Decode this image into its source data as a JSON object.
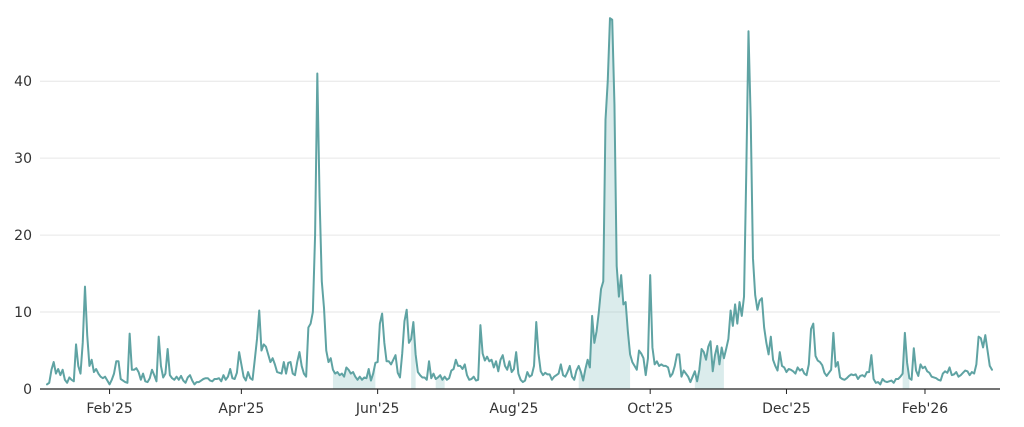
{
  "chart_data": {
    "type": "line",
    "title": "",
    "xlabel": "",
    "ylabel": "",
    "ylim": [
      0,
      49
    ],
    "y_ticks": [
      0,
      10,
      20,
      30,
      40
    ],
    "x_tick_labels": [
      {
        "date": "2025-02-01",
        "label": "Feb'25"
      },
      {
        "date": "2025-04-01",
        "label": "Apr'25"
      },
      {
        "date": "2025-06-01",
        "label": "Jun'25"
      },
      {
        "date": "2025-08-01",
        "label": "Aug'25"
      },
      {
        "date": "2025-10-01",
        "label": "Oct'25"
      },
      {
        "date": "2025-12-01",
        "label": "Dec'25"
      },
      {
        "date": "2026-02-01",
        "label": "Feb'26"
      }
    ],
    "grid": "horizontal",
    "colors": {
      "line": "#5fa3a3",
      "shade": "#7fbcbc"
    },
    "start_date": "2025-01-04",
    "series": [
      {
        "values": [
          0.6,
          0.8,
          2.5,
          3.5,
          2,
          2.6,
          1.8,
          2.5,
          1.2,
          0.8,
          1.5,
          1.2,
          1,
          5.8,
          3,
          2,
          6,
          13.3,
          7,
          3,
          3.8,
          2.2,
          2.6,
          2,
          1.6,
          1.4,
          1.6,
          1.1,
          0.6,
          1.2,
          2,
          3.6,
          3.6,
          1.3,
          1.1,
          0.9,
          0.8,
          7.2,
          2.5,
          2.5,
          2.7,
          2.2,
          1.2,
          2,
          1,
          0.9,
          1.4,
          2.5,
          1.8,
          1,
          6.8,
          3,
          1.5,
          2,
          5.2,
          1.8,
          1.4,
          1.2,
          1.6,
          1.2,
          1.7,
          1.1,
          0.8,
          1.5,
          1.8,
          1.1,
          0.6,
          0.9,
          0.9,
          1.1,
          1.3,
          1.4,
          1.4,
          1.1,
          1,
          1.3,
          1.3,
          1.4,
          1,
          1.8,
          1.2,
          1.6,
          2.6,
          1.4,
          1.3,
          2.1,
          4.8,
          3.2,
          1.6,
          1.1,
          2.2,
          1.4,
          1.2,
          3.8,
          6.5,
          10.2,
          5,
          5.8,
          5.5,
          4.5,
          3.5,
          4,
          3.2,
          2.2,
          2.1,
          2,
          3.5,
          2,
          3.4,
          3.5,
          2,
          1.8,
          3.5,
          4.8,
          3,
          2,
          1.6,
          8,
          8.5,
          10,
          20,
          41,
          25,
          14,
          10.5,
          5,
          3.5,
          4,
          2.5,
          2,
          2.2,
          1.8,
          2,
          1.6,
          2.8,
          2.5,
          2,
          2.2,
          1.6,
          1.2,
          1.6,
          1.2,
          1.5,
          1.4,
          2.6,
          1.1,
          2,
          3.4,
          3.5,
          8.5,
          9.8,
          6,
          3.6,
          3.6,
          3.2,
          3.8,
          4.4,
          2.1,
          1.5,
          4.6,
          8.8,
          10.3,
          6,
          6.5,
          8.7,
          4.5,
          2.2,
          1.8,
          1.5,
          1.5,
          1.2,
          3.6,
          1.4,
          2,
          1.3,
          1.5,
          1.8,
          1.2,
          1.6,
          1.2,
          1.4,
          2.4,
          2.6,
          3.8,
          3,
          3,
          2.6,
          3.2,
          1.8,
          1.2,
          1.3,
          1.6,
          1.1,
          1.2,
          8.3,
          4.6,
          3.7,
          4.2,
          3.6,
          3.8,
          2.8,
          3.6,
          2.3,
          3.8,
          4.4,
          3,
          2.5,
          3.6,
          2.2,
          2.6,
          4.8,
          2,
          1.2,
          0.9,
          1.1,
          2.2,
          1.6,
          1.8,
          3,
          8.7,
          4.6,
          2.3,
          1.8,
          2.1,
          1.9,
          1.9,
          1.2,
          1.6,
          1.8,
          2,
          3.2,
          1.8,
          1.6,
          2.2,
          3,
          1.6,
          1.2,
          2.4,
          3,
          2.2,
          1.1,
          2.6,
          3.8,
          2.8,
          9.5,
          6,
          7.5,
          10,
          13,
          14,
          35,
          40,
          48.2,
          48,
          37,
          16,
          12,
          14.8,
          11,
          11.3,
          7.5,
          4.5,
          3.5,
          3,
          2.5,
          5,
          4.6,
          4,
          1.8,
          4,
          14.8,
          5.4,
          3.2,
          3.6,
          3,
          3.2,
          3,
          3,
          2.8,
          1.6,
          2,
          3,
          4.5,
          4.5,
          1.6,
          2.4,
          2,
          1.6,
          0.9,
          1.6,
          2.3,
          1,
          2.5,
          5.2,
          4.8,
          3.8,
          5.5,
          6.2,
          2.3,
          4.4,
          5.6,
          3.2,
          5.4,
          4,
          5.2,
          6.5,
          10.2,
          8.2,
          11,
          8.5,
          11.3,
          9.5,
          12,
          28,
          46.5,
          35,
          17,
          12.2,
          10.3,
          11.5,
          11.8,
          8,
          6,
          4.5,
          6.8,
          3.8,
          3,
          2.4,
          4.8,
          3,
          2.8,
          2.2,
          2.6,
          2.5,
          2.3,
          2,
          2.8,
          2.4,
          2.6,
          2,
          1.8,
          3.2,
          7.8,
          8.5,
          4.3,
          3.7,
          3.5,
          3.1,
          2.1,
          1.7,
          2.1,
          2.5,
          7.3,
          2.9,
          3.5,
          1.5,
          1.3,
          1.2,
          1.4,
          1.7,
          1.9,
          1.8,
          1.9,
          1.3,
          1.7,
          1.8,
          1.6,
          2.2,
          2.2,
          4.4,
          1.3,
          0.8,
          0.9,
          0.6,
          1.3,
          1,
          0.9,
          1,
          1.1,
          0.8,
          1.3,
          1.3,
          1.6,
          2,
          7.3,
          3.4,
          1.4,
          1.2,
          5.3,
          2.4,
          1.7,
          3.2,
          2.7,
          2.9,
          2.3,
          2.1,
          1.6,
          1.5,
          1.4,
          1.2,
          1.1,
          2,
          2.3,
          2.1,
          2.8,
          1.8,
          1.9,
          2.2,
          1.6,
          1.8,
          2.1,
          2.4,
          2.3,
          1.8,
          2.2,
          2,
          3.2,
          6.8,
          6.6,
          5.4,
          7,
          5,
          3,
          2.5
        ]
      }
    ],
    "shaded_ranges": [
      [
        "2025-05-12",
        "2025-05-31"
      ],
      [
        "2025-06-16",
        "2025-06-18"
      ],
      [
        "2025-06-27",
        "2025-07-01"
      ],
      [
        "2025-08-30",
        "2025-09-22"
      ],
      [
        "2025-10-21",
        "2025-11-03"
      ],
      [
        "2026-01-22",
        "2026-01-25"
      ]
    ]
  }
}
